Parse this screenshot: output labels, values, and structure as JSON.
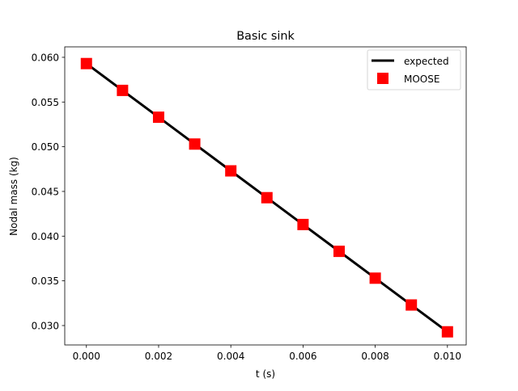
{
  "chart_data": {
    "type": "line",
    "title": "Basic sink",
    "xlabel": "t (s)",
    "ylabel": "Nodal mass (kg)",
    "xlim": [
      -0.0006,
      0.01052
    ],
    "ylim": [
      0.02783,
      0.06117
    ],
    "xticks": [
      "0.000",
      "0.002",
      "0.004",
      "0.006",
      "0.008",
      "0.010"
    ],
    "yticks": [
      "0.030",
      "0.035",
      "0.040",
      "0.045",
      "0.050",
      "0.055",
      "0.060"
    ],
    "grid": false,
    "legend_position": "top-right",
    "x": [
      0.0,
      0.001,
      0.002,
      0.003,
      0.004,
      0.005,
      0.006,
      0.007,
      0.008,
      0.009,
      0.01
    ],
    "series": [
      {
        "name": "expected",
        "style": "line",
        "color": "#000000",
        "values": [
          0.0593,
          0.0563,
          0.0533,
          0.0503,
          0.0473,
          0.0443,
          0.0413,
          0.0383,
          0.0353,
          0.0323,
          0.0293
        ]
      },
      {
        "name": "MOOSE",
        "style": "square-markers",
        "color": "#ff0000",
        "values": [
          0.0593,
          0.0563,
          0.0533,
          0.0503,
          0.0473,
          0.0443,
          0.0413,
          0.0383,
          0.0353,
          0.0323,
          0.0293
        ]
      }
    ]
  }
}
